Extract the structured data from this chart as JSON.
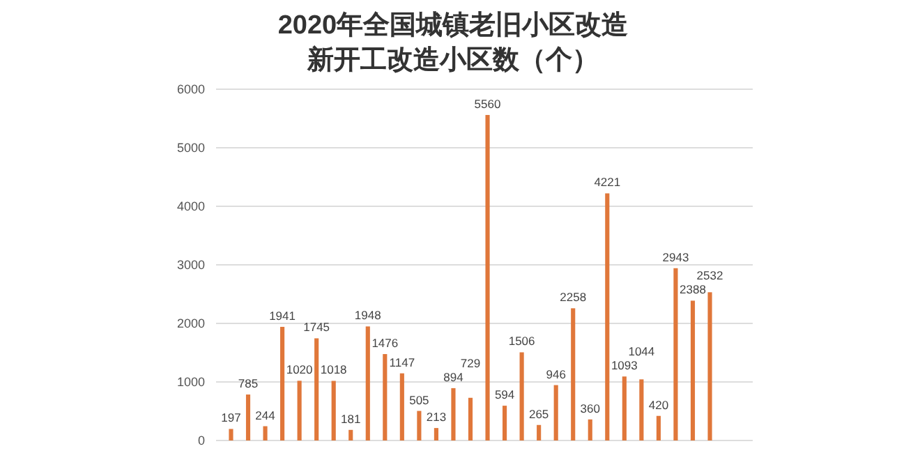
{
  "chart_data": {
    "type": "bar",
    "title": "2020年全国城镇老旧小区改造新开工改造小区数（个）",
    "categories": [
      null,
      null,
      null,
      null,
      null,
      null,
      null,
      null,
      null,
      null,
      null,
      null,
      null,
      null,
      null,
      null,
      null,
      null,
      null,
      null,
      null,
      null,
      null,
      null,
      null,
      null,
      null,
      null,
      null
    ],
    "values": [
      197,
      785,
      244,
      1941,
      1020,
      1745,
      1018,
      181,
      1948,
      1476,
      1147,
      505,
      213,
      894,
      729,
      5560,
      594,
      1506,
      265,
      946,
      2258,
      360,
      4221,
      1093,
      1044,
      420,
      2943,
      2388,
      2532
    ],
    "color": "#e0773a",
    "ylim": [
      0,
      6000
    ],
    "yticks": [
      0,
      1000,
      2000,
      3000,
      4000,
      5000,
      6000
    ],
    "grid": "y",
    "data_labels": true
  }
}
